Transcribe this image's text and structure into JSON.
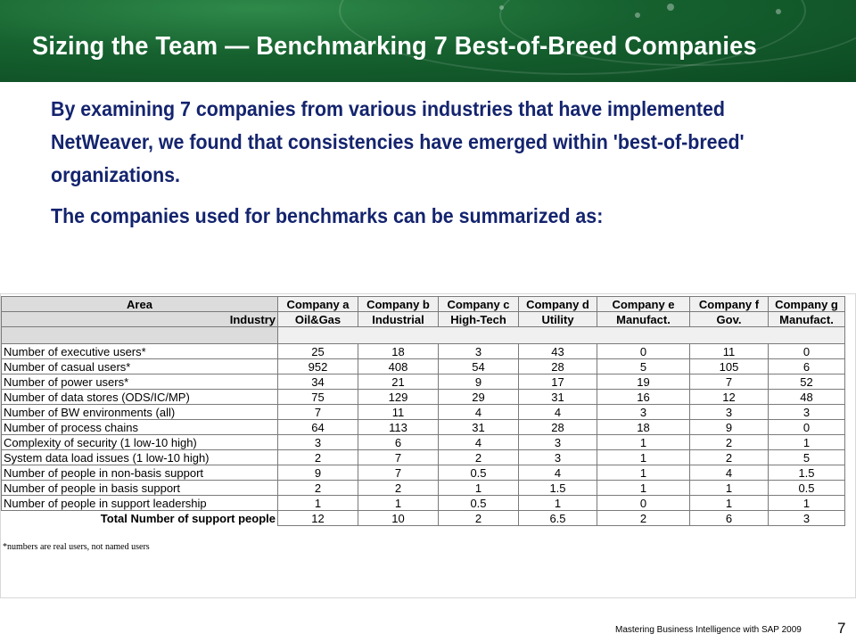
{
  "slide": {
    "title": "Sizing the Team — Benchmarking 7 Best-of-Breed Companies",
    "intro": "By examining 7 companies from various industries that have implemented NetWeaver, we found that consistencies have emerged within 'best-of-breed' organizations.",
    "summary": "The companies used for benchmarks can be summarized as:",
    "footer": "Mastering Business Intelligence with SAP 2009",
    "page_number": "7"
  },
  "table": {
    "area_label": "Area",
    "industry_label": "Industry",
    "companies": [
      "Company a",
      "Company b",
      "Company c",
      "Company d",
      "Company e",
      "Company f",
      "Company g"
    ],
    "industries": [
      "Oil&Gas",
      "Industrial",
      "High-Tech",
      "Utility",
      "Manufact.",
      "Gov.",
      "Manufact."
    ],
    "rows": [
      {
        "label": "Number of executive users*",
        "values": [
          "25",
          "18",
          "3",
          "43",
          "0",
          "11",
          "0"
        ]
      },
      {
        "label": "Number of casual users*",
        "values": [
          "952",
          "408",
          "54",
          "28",
          "5",
          "105",
          "6"
        ]
      },
      {
        "label": "Number of power users*",
        "values": [
          "34",
          "21",
          "9",
          "17",
          "19",
          "7",
          "52"
        ]
      },
      {
        "label": "Number of data stores (ODS/IC/MP)",
        "values": [
          "75",
          "129",
          "29",
          "31",
          "16",
          "12",
          "48"
        ]
      },
      {
        "label": "Number of BW environments (all)",
        "values": [
          "7",
          "11",
          "4",
          "4",
          "3",
          "3",
          "3"
        ]
      },
      {
        "label": "Number of process chains",
        "values": [
          "64",
          "113",
          "31",
          "28",
          "18",
          "9",
          "0"
        ]
      },
      {
        "label": "Complexity of security (1 low-10 high)",
        "values": [
          "3",
          "6",
          "4",
          "3",
          "1",
          "2",
          "1"
        ]
      },
      {
        "label": "System data load issues (1 low-10 high)",
        "values": [
          "2",
          "7",
          "2",
          "3",
          "1",
          "2",
          "5"
        ]
      },
      {
        "label": "Number of people in non-basis support",
        "values": [
          "9",
          "7",
          "0.5",
          "4",
          "1",
          "4",
          "1.5"
        ]
      },
      {
        "label": "Number of people in basis support",
        "values": [
          "2",
          "2",
          "1",
          "1.5",
          "1",
          "1",
          "0.5"
        ]
      },
      {
        "label": "Number of people in support leadership",
        "values": [
          "1",
          "1",
          "0.5",
          "1",
          "0",
          "1",
          "1"
        ]
      }
    ],
    "total_label": "Total Number of support people",
    "totals": [
      "12",
      "10",
      "2",
      "6.5",
      "2",
      "6",
      "3"
    ],
    "footnote": "*numbers are real users, not named users"
  }
}
